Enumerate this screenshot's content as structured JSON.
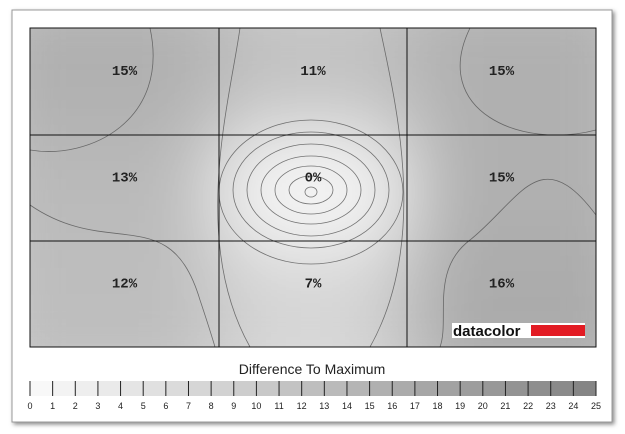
{
  "chart_data": {
    "type": "uniformity",
    "title": "Difference To Maximum",
    "brand": "datacolor",
    "grid_values": [
      [
        15,
        11,
        15
      ],
      [
        13,
        0,
        15
      ],
      [
        12,
        7,
        16
      ]
    ],
    "value_labels": [
      [
        "15%",
        "11%",
        "15%"
      ],
      [
        "13%",
        "0%",
        "15%"
      ],
      [
        "12%",
        "7%",
        "16%"
      ]
    ],
    "scale_lim": [
      0,
      25
    ],
    "scale_ticks": [
      0,
      1,
      2,
      3,
      4,
      5,
      6,
      7,
      8,
      9,
      10,
      11,
      12,
      13,
      14,
      15,
      16,
      17,
      18,
      19,
      20,
      21,
      22,
      23,
      24,
      25
    ]
  }
}
